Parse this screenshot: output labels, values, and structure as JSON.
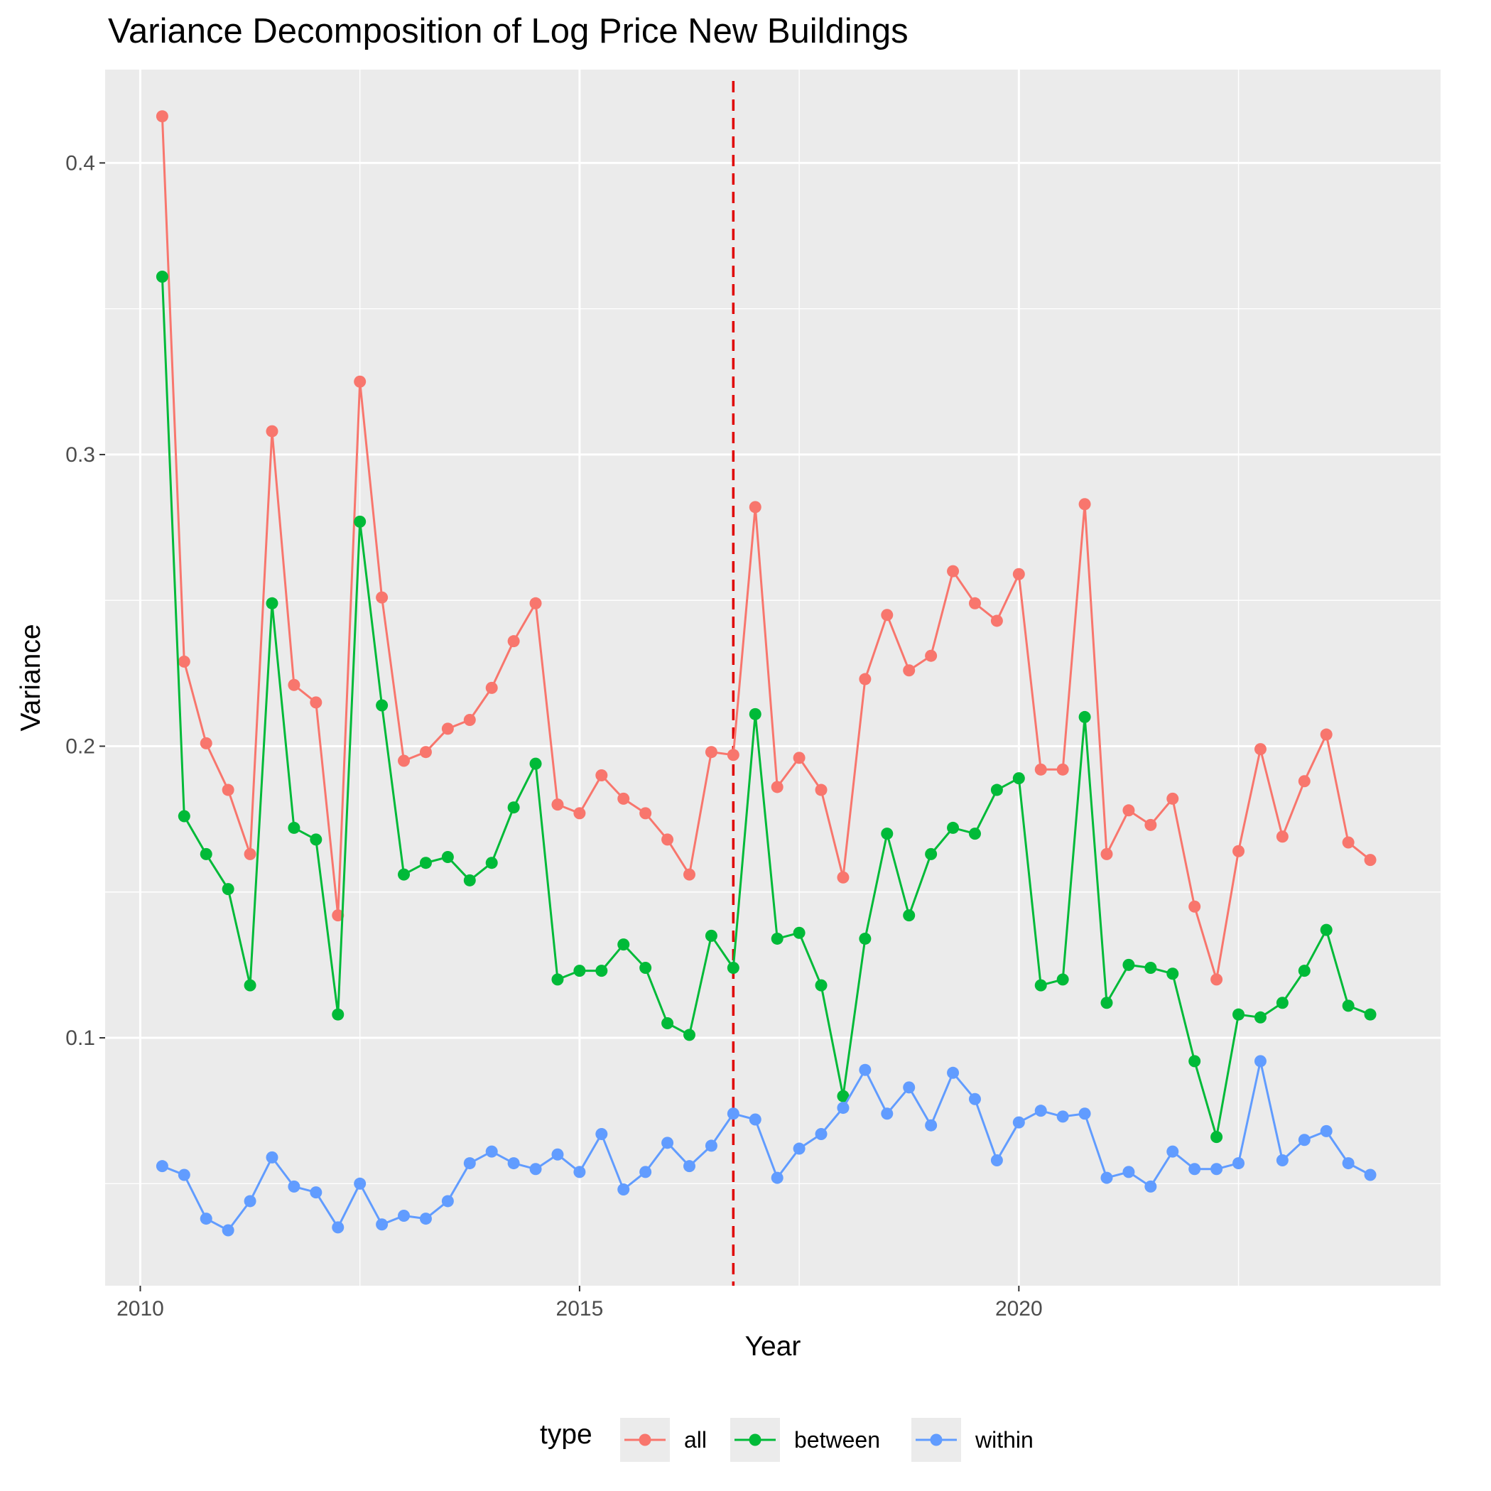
{
  "chart_data": {
    "type": "line",
    "title": "Variance Decomposition of Log Price New Buildings",
    "xlabel": "Year",
    "ylabel": "Variance",
    "xlim": [
      2009.6,
      2024.8
    ],
    "ylim": [
      0.015,
      0.432
    ],
    "x_ticks": [
      2010,
      2015,
      2020
    ],
    "x_tick_labels": [
      "2010",
      "2015",
      "2020"
    ],
    "x_minor_ticks": [
      2012.5,
      2017.5,
      2022.5
    ],
    "y_ticks": [
      0.1,
      0.2,
      0.3,
      0.4
    ],
    "y_tick_labels": [
      "0.1",
      "0.2",
      "0.3",
      "0.4"
    ],
    "y_minor_ticks": [
      0.05,
      0.15,
      0.25,
      0.35
    ],
    "grid": true,
    "background": "#ebebeb",
    "grid_color": "#ffffff",
    "vline": {
      "x": 2016.75,
      "color": "#e00000",
      "style": "dashed"
    },
    "legend": {
      "title": "type",
      "position": "bottom"
    },
    "x": [
      2010.25,
      2010.5,
      2010.75,
      2011.0,
      2011.25,
      2011.5,
      2011.75,
      2012.0,
      2012.25,
      2012.5,
      2012.75,
      2013.0,
      2013.25,
      2013.5,
      2013.75,
      2014.0,
      2014.25,
      2014.5,
      2014.75,
      2015.0,
      2015.25,
      2015.5,
      2015.75,
      2016.0,
      2016.25,
      2016.5,
      2016.75,
      2017.0,
      2017.25,
      2017.5,
      2017.75,
      2018.0,
      2018.25,
      2018.5,
      2018.75,
      2019.0,
      2019.25,
      2019.5,
      2019.75,
      2020.0,
      2020.25,
      2020.5,
      2020.75,
      2021.0,
      2021.25,
      2021.5,
      2021.75,
      2022.0,
      2022.25,
      2022.5,
      2022.75,
      2023.0,
      2023.25,
      2023.5,
      2023.75,
      2024.0
    ],
    "series": [
      {
        "name": "all",
        "color": "#f8766d",
        "values": [
          0.416,
          0.229,
          0.201,
          0.185,
          0.163,
          0.308,
          0.221,
          0.215,
          0.142,
          0.325,
          0.251,
          0.195,
          0.198,
          0.206,
          0.209,
          0.22,
          0.236,
          0.249,
          0.18,
          0.177,
          0.19,
          0.182,
          0.177,
          0.168,
          0.156,
          0.198,
          0.197,
          0.282,
          0.186,
          0.196,
          0.185,
          0.155,
          0.223,
          0.245,
          0.226,
          0.231,
          0.26,
          0.249,
          0.243,
          0.259,
          0.192,
          0.192,
          0.283,
          0.163,
          0.178,
          0.173,
          0.182,
          0.145,
          0.12,
          0.164,
          0.199,
          0.169,
          0.188,
          0.204,
          0.167,
          0.161
        ]
      },
      {
        "name": "between",
        "color": "#00ba38",
        "values": [
          0.361,
          0.176,
          0.163,
          0.151,
          0.118,
          0.249,
          0.172,
          0.168,
          0.108,
          0.277,
          0.214,
          0.156,
          0.16,
          0.162,
          0.154,
          0.16,
          0.179,
          0.194,
          0.12,
          0.123,
          0.123,
          0.132,
          0.124,
          0.105,
          0.101,
          0.135,
          0.124,
          0.211,
          0.134,
          0.136,
          0.118,
          0.08,
          0.134,
          0.17,
          0.142,
          0.163,
          0.172,
          0.17,
          0.185,
          0.189,
          0.118,
          0.12,
          0.21,
          0.112,
          0.125,
          0.124,
          0.122,
          0.092,
          0.066,
          0.108,
          0.107,
          0.112,
          0.123,
          0.137,
          0.111,
          0.108
        ]
      },
      {
        "name": "within",
        "color": "#619cff",
        "values": [
          0.056,
          0.053,
          0.038,
          0.034,
          0.044,
          0.059,
          0.049,
          0.047,
          0.035,
          0.05,
          0.036,
          0.039,
          0.038,
          0.044,
          0.057,
          0.061,
          0.057,
          0.055,
          0.06,
          0.054,
          0.067,
          0.048,
          0.054,
          0.064,
          0.056,
          0.063,
          0.074,
          0.072,
          0.052,
          0.062,
          0.067,
          0.076,
          0.089,
          0.074,
          0.083,
          0.07,
          0.088,
          0.079,
          0.058,
          0.071,
          0.075,
          0.073,
          0.074,
          0.052,
          0.054,
          0.049,
          0.061,
          0.055,
          0.055,
          0.057,
          0.092,
          0.058,
          0.065,
          0.068,
          0.057,
          0.053
        ]
      }
    ]
  }
}
